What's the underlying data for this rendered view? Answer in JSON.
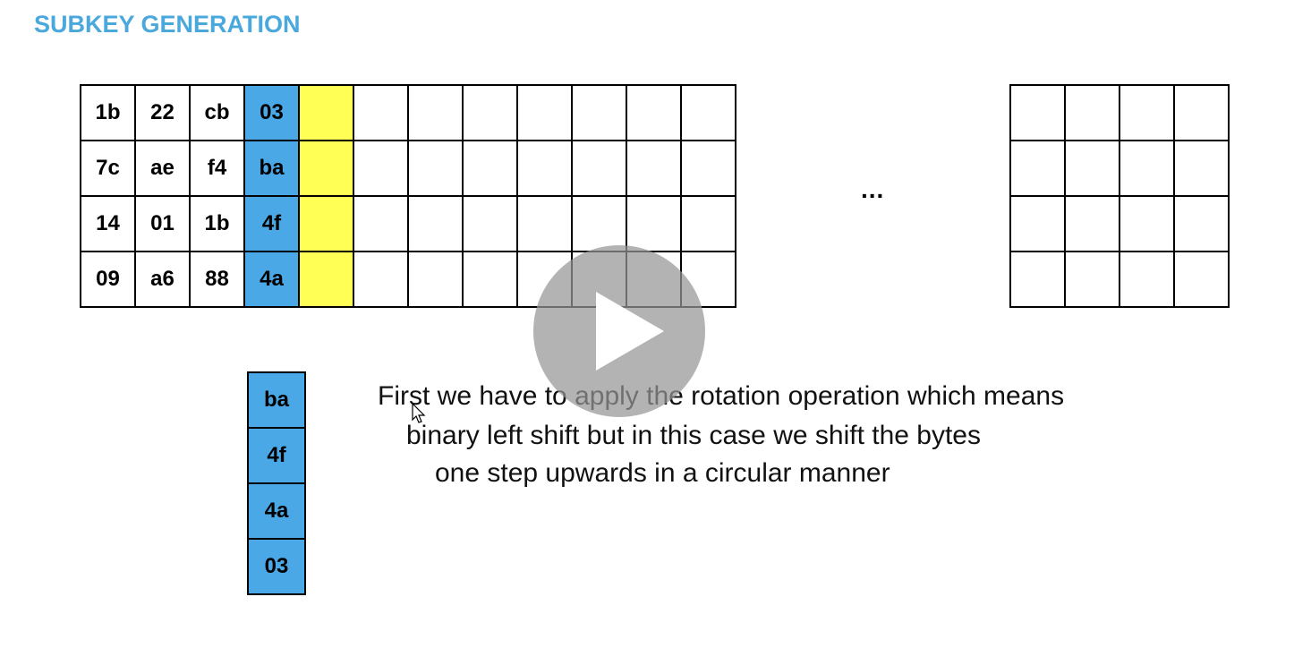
{
  "title": "SUBKEY GENERATION",
  "state_matrix": {
    "rows": [
      [
        "1b",
        "22",
        "cb",
        "03",
        "",
        "",
        "",
        "",
        "",
        "",
        "",
        ""
      ],
      [
        "7c",
        "ae",
        "f4",
        "ba",
        "",
        "",
        "",
        "",
        "",
        "",
        "",
        ""
      ],
      [
        "14",
        "01",
        "1b",
        "4f",
        "",
        "",
        "",
        "",
        "",
        "",
        "",
        ""
      ],
      [
        "09",
        "a6",
        "88",
        "4a",
        "",
        "",
        "",
        "",
        "",
        "",
        "",
        ""
      ]
    ],
    "highlight_blue_column": 4,
    "highlight_yellow_column": 5,
    "colors": {
      "blue": "#4aa8e6",
      "yellow": "#ffff55"
    }
  },
  "ellipsis": "...",
  "final_matrix": {
    "rows": 4,
    "cols": 4
  },
  "rotated_column": [
    "ba",
    "4f",
    "4a",
    "03"
  ],
  "explanation": {
    "line1": "First we have to apply the rotation operation which means",
    "line2": "binary left shift but in this case we shift the bytes",
    "line3": "one step upwards in a circular manner"
  },
  "title_color": "#4aa8dc",
  "play_icon": "play-icon",
  "cursor_icon": "mouse-pointer-icon"
}
